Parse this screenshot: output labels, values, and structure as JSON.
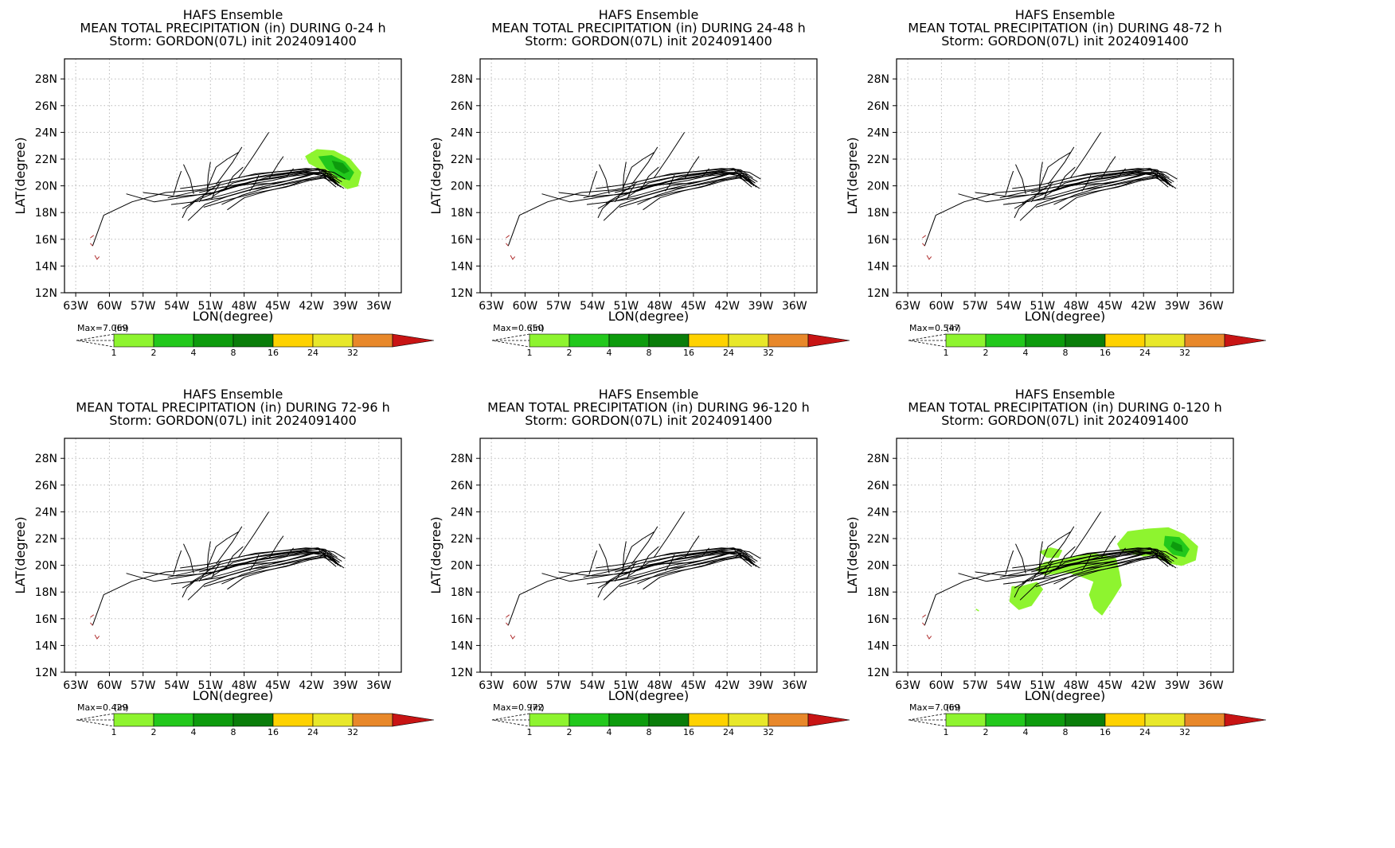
{
  "chart_data": [
    {
      "type": "heatmap",
      "title_lines": [
        "HAFS Ensemble",
        "MEAN TOTAL PRECIPITATION (in) DURING  0-24 h",
        "Storm: GORDON(07L) init 2024091400"
      ],
      "xlabel": "LON(degree)",
      "ylabel": "LAT(degree)",
      "max_label": "Max=7.069",
      "precip": "0-24"
    },
    {
      "type": "heatmap",
      "title_lines": [
        "HAFS Ensemble",
        "MEAN TOTAL PRECIPITATION (in) DURING 24-48 h",
        "Storm: GORDON(07L) init 2024091400"
      ],
      "xlabel": "LON(degree)",
      "ylabel": "LAT(degree)",
      "max_label": "Max=0.650",
      "precip": "none"
    },
    {
      "type": "heatmap",
      "title_lines": [
        "HAFS Ensemble",
        "MEAN TOTAL PRECIPITATION (in) DURING 48-72 h",
        "Storm: GORDON(07L) init 2024091400"
      ],
      "xlabel": "LON(degree)",
      "ylabel": "LAT(degree)",
      "max_label": "Max=0.547",
      "precip": "none"
    },
    {
      "type": "heatmap",
      "title_lines": [
        "HAFS Ensemble",
        "MEAN TOTAL PRECIPITATION (in) DURING 72-96 h",
        "Storm: GORDON(07L) init 2024091400"
      ],
      "xlabel": "LON(degree)",
      "ylabel": "LAT(degree)",
      "max_label": "Max=0.429",
      "precip": "none"
    },
    {
      "type": "heatmap",
      "title_lines": [
        "HAFS Ensemble",
        "MEAN TOTAL PRECIPITATION (in) DURING 96-120 h",
        "Storm: GORDON(07L) init 2024091400"
      ],
      "xlabel": "LON(degree)",
      "ylabel": "LAT(degree)",
      "max_label": "Max=0.972",
      "precip": "none"
    },
    {
      "type": "heatmap",
      "title_lines": [
        "HAFS Ensemble",
        "MEAN TOTAL PRECIPITATION (in) DURING 0-120 h",
        "Storm: GORDON(07L) init 2024091400"
      ],
      "xlabel": "LON(degree)",
      "ylabel": "LAT(degree)",
      "max_label": "Max=7.069",
      "precip": "0-120"
    }
  ],
  "axes": {
    "x_ticks": [
      -63,
      -60,
      -57,
      -54,
      -51,
      -48,
      -45,
      -42,
      -39,
      -36
    ],
    "x_tick_labels": [
      "63W",
      "60W",
      "57W",
      "54W",
      "51W",
      "48W",
      "45W",
      "42W",
      "39W",
      "36W"
    ],
    "y_ticks": [
      12,
      14,
      16,
      18,
      20,
      22,
      24,
      26,
      28
    ],
    "y_tick_labels": [
      "12N",
      "14N",
      "16N",
      "18N",
      "20N",
      "22N",
      "24N",
      "26N",
      "28N"
    ],
    "xlim": [
      -64,
      -34
    ],
    "ylim": [
      12,
      29.5
    ],
    "grid": "dotted"
  },
  "colorbar": {
    "units": "(in)",
    "levels": [
      "1",
      "2",
      "4",
      "8",
      "16",
      "24",
      "32"
    ],
    "colors": [
      "#8ef42f",
      "#22c81c",
      "#0d9b0d",
      "#0a7d0a",
      "#fed200",
      "#e8e82a",
      "#e8882a",
      "#c81414"
    ]
  },
  "tracks": [
    [
      [
        -61.5,
        15.5
      ],
      [
        -60.5,
        17.8
      ],
      [
        -58,
        18.8
      ],
      [
        -55,
        19.5
      ],
      [
        -52,
        19.7
      ],
      [
        -49,
        20.3
      ],
      [
        -46,
        20.8
      ],
      [
        -43,
        21.1
      ],
      [
        -41.5,
        21.3
      ],
      [
        -40.5,
        20.4
      ]
    ],
    [
      [
        -58.5,
        19.4
      ],
      [
        -56,
        18.8
      ],
      [
        -53,
        19.2
      ],
      [
        -50,
        19.6
      ],
      [
        -47.5,
        20.3
      ],
      [
        -45,
        20.6
      ],
      [
        -42,
        20.9
      ],
      [
        -40.5,
        20.7
      ],
      [
        -39.5,
        20.0
      ]
    ],
    [
      [
        -53.5,
        18.3
      ],
      [
        -52,
        19.0
      ],
      [
        -50,
        19.7
      ],
      [
        -47,
        20.4
      ],
      [
        -44,
        20.8
      ],
      [
        -41.5,
        21.2
      ],
      [
        -40,
        21.0
      ],
      [
        -39,
        20.5
      ]
    ],
    [
      [
        -52,
        19.5
      ],
      [
        -50,
        19.9
      ],
      [
        -48,
        20.1
      ],
      [
        -45,
        20.2
      ],
      [
        -42.5,
        20.7
      ],
      [
        -41,
        21.1
      ],
      [
        -39.5,
        20.2
      ]
    ],
    [
      [
        -57,
        19.5
      ],
      [
        -54,
        19.2
      ],
      [
        -51,
        19.4
      ],
      [
        -48.5,
        20.0
      ],
      [
        -45.5,
        20.4
      ],
      [
        -43,
        20.9
      ],
      [
        -41,
        21.0
      ],
      [
        -39.8,
        20.1
      ]
    ],
    [
      [
        -53,
        17.4
      ],
      [
        -51.5,
        18.6
      ],
      [
        -49.5,
        19.2
      ],
      [
        -47,
        19.8
      ],
      [
        -44.5,
        20.3
      ],
      [
        -42,
        20.9
      ],
      [
        -40.5,
        20.9
      ],
      [
        -39.3,
        20.3
      ]
    ],
    [
      [
        -50.8,
        19.2
      ],
      [
        -49,
        20.2
      ],
      [
        -47,
        20.6
      ],
      [
        -44.5,
        20.9
      ],
      [
        -42.5,
        21.1
      ],
      [
        -41,
        21.2
      ],
      [
        -40,
        20.6
      ]
    ],
    [
      [
        -54.5,
        18.6
      ],
      [
        -52.5,
        18.8
      ],
      [
        -50,
        19.1
      ],
      [
        -47.5,
        19.7
      ],
      [
        -45,
        20.0
      ],
      [
        -42,
        20.5
      ],
      [
        -40.5,
        20.7
      ],
      [
        -39.6,
        20.0
      ]
    ],
    [
      [
        -52,
        18.8
      ],
      [
        -51.5,
        19.4
      ],
      [
        -50,
        20.3
      ],
      [
        -48,
        20.7
      ],
      [
        -45.5,
        21.0
      ],
      [
        -43,
        21.2
      ],
      [
        -41.4,
        21.3
      ],
      [
        -40.2,
        20.8
      ]
    ],
    [
      [
        -49.5,
        18.2
      ],
      [
        -48,
        19.1
      ],
      [
        -46,
        19.6
      ],
      [
        -44,
        20.0
      ],
      [
        -42,
        20.6
      ],
      [
        -40.5,
        20.8
      ],
      [
        -39.5,
        20.2
      ]
    ],
    [
      [
        -53.7,
        19.8
      ],
      [
        -51,
        20.1
      ],
      [
        -49,
        20.5
      ],
      [
        -47,
        20.9
      ],
      [
        -44.5,
        21.1
      ],
      [
        -42.5,
        21.3
      ],
      [
        -40.8,
        21.2
      ],
      [
        -39.7,
        20.6
      ]
    ],
    [
      [
        -51.8,
        18.9
      ],
      [
        -49.5,
        19.4
      ],
      [
        -47,
        20.0
      ],
      [
        -44,
        20.4
      ],
      [
        -41.7,
        20.9
      ],
      [
        -40.2,
        20.6
      ],
      [
        -39.4,
        19.9
      ]
    ],
    [
      [
        -51.3,
        19.8
      ],
      [
        -50.5,
        21.4
      ],
      [
        -49.5,
        22.0
      ],
      [
        -48.5,
        22.5
      ]
    ],
    [
      [
        -50.5,
        20.1
      ],
      [
        -49,
        21.8
      ],
      [
        -48.2,
        22.9
      ]
    ],
    [
      [
        -48.5,
        20.6
      ],
      [
        -47.2,
        22.2
      ],
      [
        -45.8,
        24.0
      ]
    ],
    [
      [
        -52.5,
        19.4
      ],
      [
        -52.8,
        20.5
      ],
      [
        -53.4,
        21.6
      ]
    ],
    [
      [
        -51.3,
        19.5
      ],
      [
        -51.2,
        20.8
      ],
      [
        -51.0,
        21.8
      ]
    ],
    [
      [
        -53.5,
        17.6
      ],
      [
        -53.1,
        18.3
      ],
      [
        -52.3,
        18.9
      ]
    ],
    [
      [
        -54.3,
        19.3
      ],
      [
        -53.9,
        20.4
      ],
      [
        -53.6,
        21.1
      ]
    ],
    [
      [
        -49.6,
        19.8
      ],
      [
        -49.0,
        20.7
      ],
      [
        -48.1,
        21.4
      ]
    ],
    [
      [
        -45.8,
        20.5
      ],
      [
        -45.0,
        21.6
      ],
      [
        -44.5,
        22.2
      ]
    ],
    [
      [
        -50.9,
        19.0
      ],
      [
        -50.6,
        19.6
      ],
      [
        -50.2,
        20.1
      ]
    ],
    [
      [
        -47.5,
        19.6
      ],
      [
        -47.0,
        20.2
      ],
      [
        -46.7,
        20.8
      ]
    ],
    [
      [
        -44.2,
        20.7
      ],
      [
        -43.6,
        21.3
      ]
    ],
    [
      [
        -52.8,
        18.7
      ],
      [
        -51.6,
        19.3
      ],
      [
        -50.3,
        19.6
      ],
      [
        -48.0,
        20.1
      ],
      [
        -45.7,
        20.7
      ],
      [
        -43.2,
        21.0
      ],
      [
        -41.2,
        21.0
      ],
      [
        -40.0,
        20.4
      ]
    ],
    [
      [
        -50.0,
        18.6
      ],
      [
        -48.2,
        19.3
      ],
      [
        -46.2,
        19.8
      ],
      [
        -43.7,
        20.3
      ],
      [
        -41.3,
        20.7
      ],
      [
        -40.0,
        20.3
      ],
      [
        -39.1,
        19.8
      ]
    ],
    [
      [
        -54.8,
        19.1
      ],
      [
        -52.2,
        19.6
      ],
      [
        -49.8,
        19.9
      ],
      [
        -47.3,
        20.3
      ],
      [
        -44.8,
        20.7
      ],
      [
        -42.6,
        21.0
      ],
      [
        -41.0,
        20.9
      ],
      [
        -39.9,
        20.2
      ]
    ],
    [
      [
        -51.6,
        18.4
      ],
      [
        -49.2,
        19.0
      ],
      [
        -46.8,
        19.5
      ],
      [
        -44.3,
        19.9
      ],
      [
        -42.2,
        20.4
      ],
      [
        -40.8,
        20.6
      ],
      [
        -39.8,
        19.9
      ]
    ]
  ],
  "islands": [
    [
      [
        -61.4,
        16.3
      ],
      [
        -61.7,
        16.1
      ]
    ],
    [
      [
        -61.7,
        15.7
      ],
      [
        -61.5,
        15.5
      ]
    ],
    [
      [
        -61.3,
        14.8
      ],
      [
        -61.1,
        14.5
      ],
      [
        -60.9,
        14.7
      ]
    ]
  ],
  "rain_0_24": {
    "light": [
      [
        -42.5,
        22.2
      ],
      [
        -41.5,
        22.7
      ],
      [
        -40.0,
        22.6
      ],
      [
        -38.6,
        22.0
      ],
      [
        -37.6,
        21.0
      ],
      [
        -37.9,
        20.0
      ],
      [
        -38.8,
        19.8
      ],
      [
        -40.1,
        20.5
      ],
      [
        -41.3,
        21.3
      ],
      [
        -42.2,
        21.7
      ]
    ],
    "mid": [
      [
        -41.4,
        22.2
      ],
      [
        -40.2,
        22.3
      ],
      [
        -39.0,
        21.8
      ],
      [
        -38.2,
        21.0
      ],
      [
        -38.6,
        20.4
      ],
      [
        -39.6,
        20.6
      ],
      [
        -40.7,
        21.3
      ]
    ],
    "dark": [
      [
        -40.2,
        21.9
      ],
      [
        -39.2,
        21.7
      ],
      [
        -38.6,
        21.1
      ],
      [
        -39.1,
        20.9
      ],
      [
        -39.9,
        21.3
      ]
    ]
  },
  "rain_0_120": {
    "light": [
      [
        [
          -44.3,
          21.6
        ],
        [
          -43.4,
          22.5
        ],
        [
          -41.6,
          22.7
        ],
        [
          -39.8,
          22.8
        ],
        [
          -38.4,
          22.3
        ],
        [
          -37.2,
          21.4
        ],
        [
          -37.4,
          20.4
        ],
        [
          -38.6,
          20.0
        ],
        [
          -39.9,
          20.2
        ],
        [
          -41.0,
          20.8
        ],
        [
          -42.0,
          20.7
        ],
        [
          -43.0,
          20.9
        ],
        [
          -44.0,
          21.1
        ]
      ],
      [
        [
          -49.5,
          20.4
        ],
        [
          -46.5,
          20.9
        ],
        [
          -44.5,
          20.5
        ],
        [
          -44.2,
          19.5
        ],
        [
          -44.0,
          18.5
        ],
        [
          -44.9,
          17.3
        ],
        [
          -45.7,
          16.3
        ],
        [
          -46.4,
          16.8
        ],
        [
          -46.8,
          17.8
        ],
        [
          -46.4,
          18.8
        ],
        [
          -47.6,
          19.2
        ],
        [
          -48.8,
          19.5
        ],
        [
          -50.8,
          19.3
        ],
        [
          -51.6,
          19.7
        ],
        [
          -50.8,
          20.2
        ]
      ],
      [
        [
          -53.7,
          18.4
        ],
        [
          -52.9,
          18.4
        ],
        [
          -51.5,
          18.7
        ],
        [
          -51.0,
          18.2
        ],
        [
          -52.0,
          17.0
        ],
        [
          -53.1,
          16.7
        ],
        [
          -53.9,
          17.3
        ]
      ],
      [
        [
          -51.2,
          21.0
        ],
        [
          -50.3,
          21.3
        ],
        [
          -49.3,
          21.1
        ],
        [
          -49.6,
          20.6
        ],
        [
          -50.6,
          20.6
        ]
      ],
      [
        [
          -56.9,
          16.7
        ],
        [
          -56.7,
          16.6
        ]
      ]
    ],
    "mid": [
      [
        -40.1,
        22.2
      ],
      [
        -38.8,
        22.1
      ],
      [
        -37.9,
        21.2
      ],
      [
        -38.3,
        20.6
      ],
      [
        -39.4,
        20.8
      ],
      [
        -40.2,
        21.5
      ]
    ],
    "dark": [
      [
        -39.4,
        21.8
      ],
      [
        -38.6,
        21.5
      ],
      [
        -38.5,
        21.0
      ],
      [
        -39.1,
        21.1
      ],
      [
        -39.6,
        21.4
      ]
    ]
  }
}
